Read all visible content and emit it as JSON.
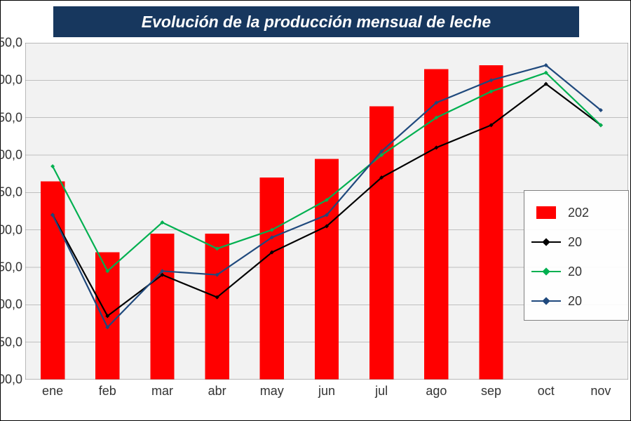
{
  "chart": {
    "type": "bar+line",
    "title": "Evolución de la producción mensual de leche",
    "categories": [
      "ene",
      "feb",
      "mar",
      "abr",
      "may",
      "jun",
      "jul",
      "ago",
      "sep",
      "oct",
      "nov"
    ],
    "y": {
      "min": 600.0,
      "max": 1050.0,
      "tick_step": 50.0,
      "tick_labels": [
        "00,0",
        "50,0",
        "00,0",
        "50,0",
        "00,0",
        "50,0",
        "00,0",
        "50,0",
        "00,0",
        "50,0"
      ],
      "title_fontsize": 18
    },
    "xcat_fontsize": 18,
    "title_fontsize": 23,
    "background_color": "#ffffff",
    "plot_background": "#f2f2f2",
    "grid_color": "#bfbfbf",
    "border_color": "#808080",
    "legend": {
      "position": "right-middle",
      "items": [
        {
          "label": "202",
          "kind": "bar",
          "color": "#ff0000"
        },
        {
          "label": "20",
          "kind": "line",
          "color": "#000000"
        },
        {
          "label": "20",
          "kind": "line",
          "color": "#00b050"
        },
        {
          "label": "20",
          "kind": "line",
          "color": "#1f497d"
        }
      ]
    },
    "bars": {
      "color": "#ff0000",
      "width_ratio": 0.44,
      "values": [
        865,
        770,
        795,
        795,
        870,
        895,
        965,
        1015,
        1020,
        null,
        null
      ]
    },
    "lines": [
      {
        "name": "series_black",
        "color": "#000000",
        "marker": "diamond",
        "values": [
          820,
          685,
          740,
          710,
          770,
          805,
          870,
          910,
          940,
          995,
          940
        ]
      },
      {
        "name": "series_green",
        "color": "#00b050",
        "marker": "diamond",
        "values": [
          885,
          745,
          810,
          775,
          800,
          840,
          900,
          950,
          985,
          1010,
          940
        ]
      },
      {
        "name": "series_blue",
        "color": "#1f497d",
        "marker": "diamond",
        "values": [
          820,
          670,
          745,
          740,
          790,
          820,
          905,
          970,
          1000,
          1020,
          960
        ]
      }
    ],
    "line_width": 2.2,
    "marker_size": 6
  }
}
